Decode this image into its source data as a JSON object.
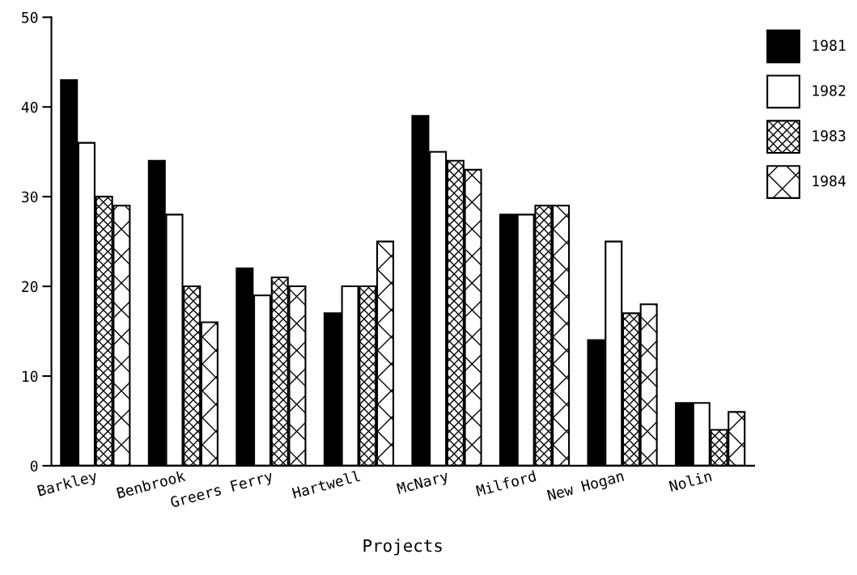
{
  "chart_data": {
    "type": "bar",
    "xlabel": "Projects",
    "categories": [
      "Barkley",
      "Benbrook",
      "Greers Ferry",
      "Hartwell",
      "McNary",
      "Milford",
      "New Hogan",
      "Nolin"
    ],
    "series": [
      {
        "name": "1981",
        "color": "#000000",
        "values": [
          43,
          34,
          22,
          17,
          39,
          28,
          14,
          7
        ]
      },
      {
        "name": "1982",
        "color": "#ffffff",
        "values": [
          36,
          28,
          19,
          20,
          35,
          28,
          25,
          7
        ]
      },
      {
        "name": "1983",
        "color": "#000000",
        "values": [
          30,
          20,
          21,
          20,
          34,
          29,
          17,
          4
        ]
      },
      {
        "name": "1984",
        "color": "#000000",
        "values": [
          29,
          16,
          20,
          25,
          33,
          29,
          18,
          6
        ]
      }
    ],
    "ylim": [
      0,
      50
    ],
    "yticks": [
      0,
      10,
      20,
      30,
      40,
      50
    ],
    "grid": false,
    "legend": "top right"
  }
}
